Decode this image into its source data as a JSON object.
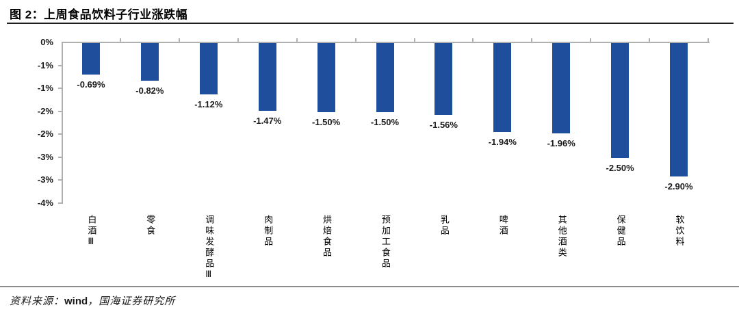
{
  "header": {
    "title": "图 2：上周食品饮料子行业涨跌幅"
  },
  "footer": {
    "prefix": "资料来源：",
    "source": "wind",
    "suffix": "，国海证券研究所"
  },
  "chart_data": {
    "type": "bar",
    "title": "上周食品饮料子行业涨跌幅",
    "categories": [
      "白酒Ⅲ",
      "零食",
      "调味发酵品Ⅲ",
      "肉制品",
      "烘焙食品",
      "预加工食品",
      "乳品",
      "啤酒",
      "其他酒类",
      "保健品",
      "软饮料"
    ],
    "values": [
      -0.69,
      -0.82,
      -1.12,
      -1.47,
      -1.5,
      -1.5,
      -1.56,
      -1.94,
      -1.96,
      -2.5,
      -2.9
    ],
    "value_labels": [
      "-0.69%",
      "-0.82%",
      "-1.12%",
      "-1.47%",
      "-1.50%",
      "-1.50%",
      "-1.56%",
      "-1.94%",
      "-1.96%",
      "-2.50%",
      "-2.90%"
    ],
    "y_ticks": [
      "0%",
      "-1%",
      "-1%",
      "-2%",
      "-2%",
      "-3%",
      "-3%",
      "-4%"
    ],
    "y_axis": {
      "min": -3.5,
      "max": 0,
      "tick_step": 0.5
    },
    "xlabel": "",
    "ylabel": "",
    "bar_color": "#1F4E9C",
    "grid": false,
    "legend": false
  }
}
